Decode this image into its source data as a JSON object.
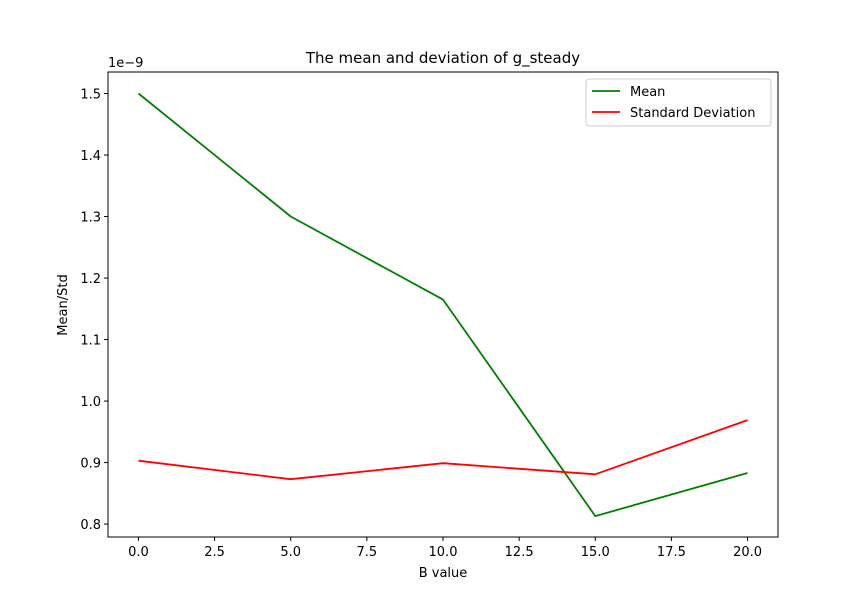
{
  "chart_data": {
    "type": "line",
    "title": "The mean and deviation of g_steady",
    "xlabel": "B value",
    "ylabel": "Mean/Std",
    "y_offset_label": "1e−9",
    "x": [
      0,
      5,
      10,
      15,
      20
    ],
    "series": [
      {
        "name": "Mean",
        "color": "#008000",
        "values": [
          1.5,
          1.3,
          1.165,
          0.813,
          0.883
        ]
      },
      {
        "name": "Standard Deviation",
        "color": "#ff0000",
        "values": [
          0.903,
          0.873,
          0.899,
          0.881,
          0.969
        ]
      }
    ],
    "xlim": [
      -1,
      21
    ],
    "ylim": [
      0.779,
      1.535
    ],
    "xticks": [
      0.0,
      2.5,
      5.0,
      7.5,
      10.0,
      12.5,
      15.0,
      17.5,
      20.0
    ],
    "xtick_labels": [
      "0.0",
      "2.5",
      "5.0",
      "7.5",
      "10.0",
      "12.5",
      "15.0",
      "17.5",
      "20.0"
    ],
    "yticks": [
      0.8,
      0.9,
      1.0,
      1.1,
      1.2,
      1.3,
      1.4,
      1.5
    ],
    "ytick_labels": [
      "0.8",
      "0.9",
      "1.0",
      "1.1",
      "1.2",
      "1.3",
      "1.4",
      "1.5"
    ],
    "grid": false,
    "legend_position": "top-right"
  }
}
